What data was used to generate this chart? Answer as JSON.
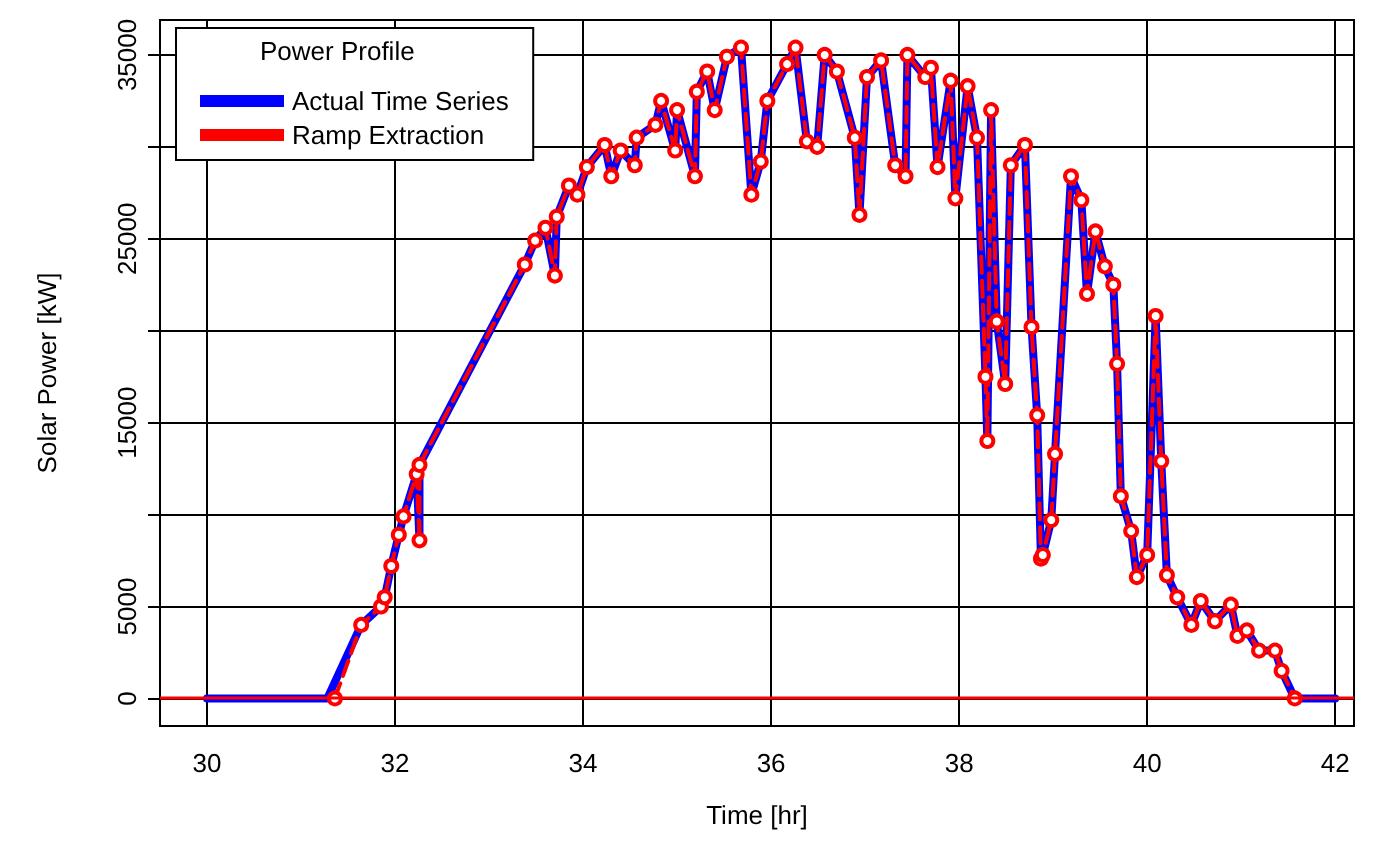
{
  "chart_data": {
    "type": "line",
    "xlabel": "Time [hr]",
    "ylabel": "Solar Power [kW]",
    "legend_title": "Power Profile",
    "xlim": [
      29.5,
      42.2
    ],
    "xticks": [
      30,
      32,
      34,
      36,
      38,
      40,
      42
    ],
    "ylim": [
      -1500,
      36900
    ],
    "yticks": [
      0,
      5000,
      {
        "value": 10000,
        "label": null
      },
      15000,
      {
        "value": 20000,
        "label": null
      },
      25000,
      {
        "value": 30000,
        "label": null
      },
      35000
    ],
    "grid": true,
    "legend": "top left",
    "marker": "circle",
    "ref_lines": [
      {
        "axis": "y",
        "value": 0,
        "color": "#ff0000"
      }
    ],
    "series": [
      {
        "name": "Actual Time Series",
        "color": "#0000ff",
        "line_style": "solid",
        "marker": "none",
        "x": [
          30,
          31.28,
          31.64,
          31.85,
          31.89,
          31.96,
          32.04,
          32.09,
          32.23,
          32.26,
          32.26,
          33.38,
          33.49,
          33.6,
          33.7,
          33.72,
          33.85,
          33.94,
          34.04,
          34.23,
          34.3,
          34.4,
          34.55,
          34.57,
          34.77,
          34.83,
          34.98,
          35.0,
          35.19,
          35.21,
          35.32,
          35.4,
          35.53,
          35.68,
          35.79,
          35.89,
          35.96,
          36.17,
          36.26,
          36.38,
          36.49,
          36.57,
          36.7,
          36.89,
          36.94,
          37.02,
          37.17,
          37.32,
          37.43,
          37.45,
          37.64,
          37.7,
          37.77,
          37.91,
          37.96,
          38.09,
          38.19,
          38.28,
          38.3,
          38.34,
          38.4,
          38.49,
          38.55,
          38.7,
          38.77,
          38.83,
          38.87,
          38.89,
          38.98,
          39.02,
          39.19,
          39.3,
          39.36,
          39.45,
          39.55,
          39.64,
          39.68,
          39.72,
          39.83,
          39.89,
          40.0,
          40.09,
          40.15,
          40.21,
          40.32,
          40.47,
          40.57,
          40.72,
          40.89,
          40.96,
          41.06,
          41.19,
          41.36,
          41.43,
          41.57,
          42
        ],
        "values": [
          0,
          0,
          4000,
          5000,
          5500,
          7200,
          8900,
          9900,
          12200,
          8600,
          12700,
          23600,
          24900,
          25600,
          23000,
          26200,
          27900,
          27400,
          28900,
          30100,
          28400,
          29800,
          29000,
          30500,
          31200,
          32500,
          29800,
          32000,
          28400,
          33000,
          34100,
          32000,
          34900,
          35400,
          27400,
          29200,
          32500,
          34500,
          35400,
          30300,
          30000,
          35000,
          34100,
          30500,
          26300,
          33800,
          34700,
          29000,
          28400,
          35000,
          33800,
          34300,
          28900,
          33600,
          27200,
          33300,
          30500,
          17500,
          14000,
          32000,
          20500,
          17100,
          29000,
          30100,
          20200,
          15400,
          7600,
          7800,
          9700,
          13300,
          28400,
          27100,
          22000,
          25400,
          23500,
          22500,
          18200,
          11000,
          9100,
          6600,
          7800,
          20800,
          12900,
          6700,
          5500,
          4000,
          5300,
          4200,
          5100,
          3400,
          3700,
          2600,
          2600,
          1500,
          0,
          0
        ]
      },
      {
        "name": "Ramp Extraction",
        "color": "#ff0000",
        "line_style": "dashed",
        "x": [
          31.36,
          31.64,
          31.85,
          31.89,
          31.96,
          32.04,
          32.09,
          32.23,
          32.26,
          32.26,
          33.38,
          33.49,
          33.6,
          33.7,
          33.72,
          33.85,
          33.94,
          34.04,
          34.23,
          34.3,
          34.4,
          34.55,
          34.57,
          34.77,
          34.83,
          34.98,
          35.0,
          35.19,
          35.21,
          35.32,
          35.4,
          35.53,
          35.68,
          35.79,
          35.89,
          35.96,
          36.17,
          36.26,
          36.38,
          36.49,
          36.57,
          36.7,
          36.89,
          36.94,
          37.02,
          37.17,
          37.32,
          37.43,
          37.45,
          37.64,
          37.7,
          37.77,
          37.91,
          37.96,
          38.09,
          38.19,
          38.28,
          38.3,
          38.34,
          38.4,
          38.49,
          38.55,
          38.7,
          38.77,
          38.83,
          38.87,
          38.89,
          38.98,
          39.02,
          39.19,
          39.3,
          39.36,
          39.45,
          39.55,
          39.64,
          39.68,
          39.72,
          39.83,
          39.89,
          40.0,
          40.09,
          40.15,
          40.21,
          40.32,
          40.47,
          40.57,
          40.72,
          40.89,
          40.96,
          41.06,
          41.19,
          41.36,
          41.43,
          41.57
        ],
        "values": [
          0,
          4000,
          5000,
          5500,
          7200,
          8900,
          9900,
          12200,
          8600,
          12700,
          23600,
          24900,
          25600,
          23000,
          26200,
          27900,
          27400,
          28900,
          30100,
          28400,
          29800,
          29000,
          30500,
          31200,
          32500,
          29800,
          32000,
          28400,
          33000,
          34100,
          32000,
          34900,
          35400,
          27400,
          29200,
          32500,
          34500,
          35400,
          30300,
          30000,
          35000,
          34100,
          30500,
          26300,
          33800,
          34700,
          29000,
          28400,
          35000,
          33800,
          34300,
          28900,
          33600,
          27200,
          33300,
          30500,
          17500,
          14000,
          32000,
          20500,
          17100,
          29000,
          30100,
          20200,
          15400,
          7600,
          7800,
          9700,
          13300,
          28400,
          27100,
          22000,
          25400,
          23500,
          22500,
          18200,
          11000,
          9100,
          6600,
          7800,
          20800,
          12900,
          6700,
          5500,
          4000,
          5300,
          4200,
          5100,
          3400,
          3700,
          2600,
          2600,
          1500,
          0
        ]
      }
    ]
  }
}
